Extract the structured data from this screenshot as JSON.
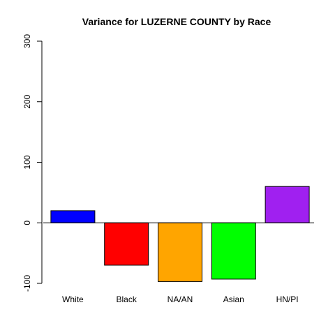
{
  "chart_data": {
    "type": "bar",
    "title": "Variance for LUZERNE COUNTY by Race",
    "xlabel": "",
    "ylabel": "",
    "categories": [
      "White",
      "Black",
      "NA/AN",
      "Asian",
      "HN/PI"
    ],
    "values": [
      20,
      -70,
      -97,
      -93,
      60
    ],
    "colors": [
      "#0000FF",
      "#FF0000",
      "#FFA500",
      "#00FF00",
      "#A020F0"
    ],
    "ylim": [
      -100,
      300
    ],
    "yticks": [
      -100,
      0,
      100,
      200,
      300
    ],
    "ytick_labels": [
      "-100",
      "0",
      "100",
      "200",
      "300"
    ],
    "grid": false,
    "legend": "none"
  }
}
